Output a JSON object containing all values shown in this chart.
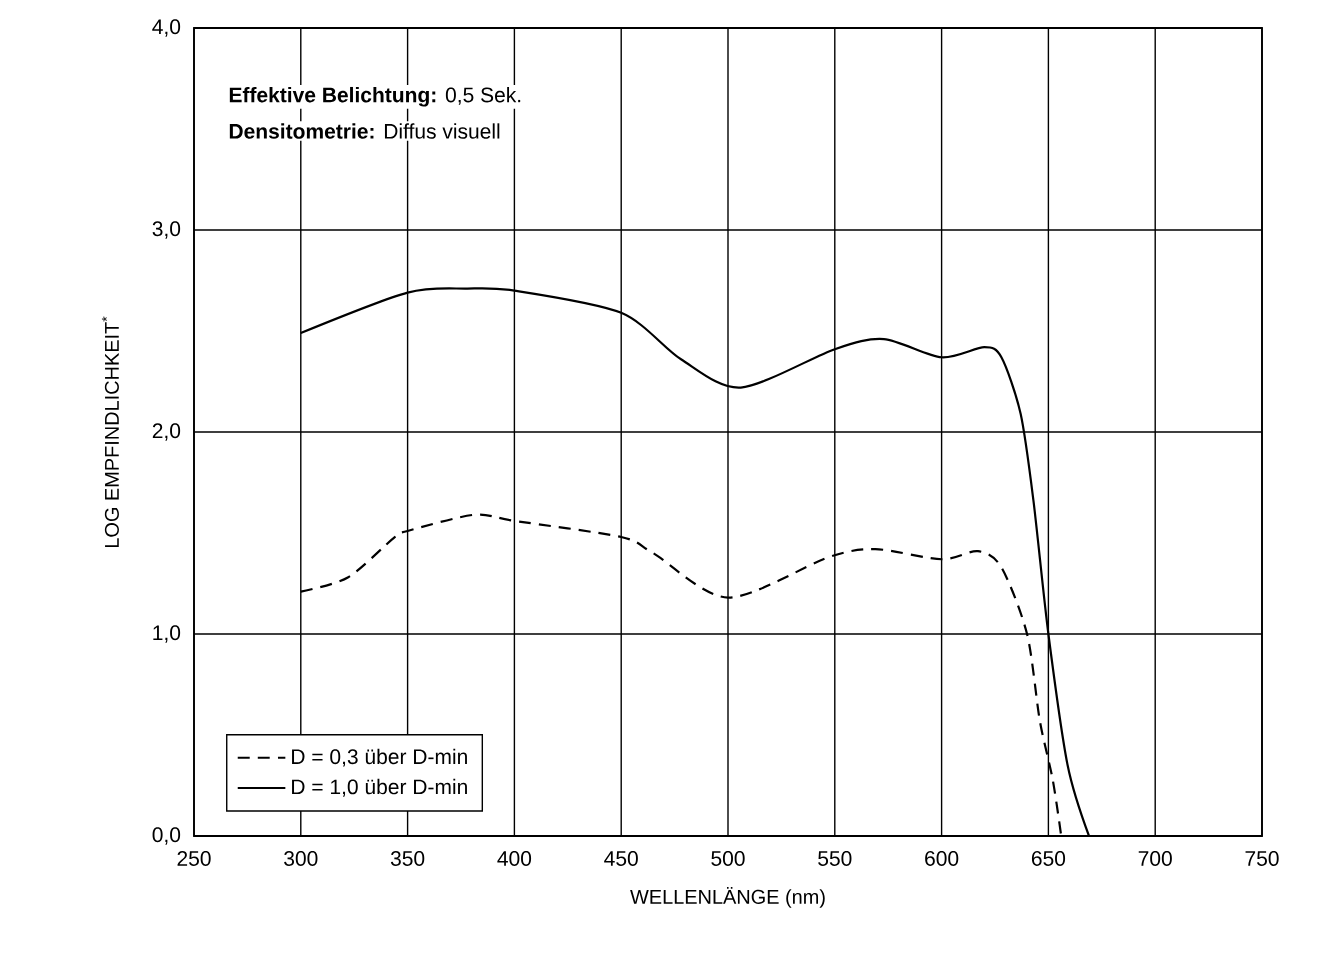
{
  "chart_data": {
    "type": "line",
    "xlabel": "WELLENLÄNGE (nm)",
    "ylabel": "LOG EMPFINDLICHKEIT$^{*}$",
    "annotations": [
      "**Effektive Belichtung:** 0,5 Sek.",
      "**Densitometrie:** Diffus visuell"
    ],
    "xlim": [
      250,
      750
    ],
    "xticks": [
      250,
      300,
      350,
      400,
      450,
      500,
      550,
      600,
      650,
      700,
      750
    ],
    "ylim": [
      0,
      4
    ],
    "yticks": [
      {
        "value": 0,
        "label": "0,0"
      },
      {
        "value": 1,
        "label": "1,0"
      },
      {
        "value": 2,
        "label": "2,0"
      },
      {
        "value": 3,
        "label": "3,0"
      },
      {
        "value": 4,
        "label": "4,0"
      }
    ],
    "grid": true,
    "legend": "bottom left",
    "series": [
      {
        "name": "D = 0,3 über D-min",
        "color": "#000000",
        "line_style": "dashed",
        "x": [
          300,
          322,
          344,
          350,
          381,
          400,
          450,
          465,
          500,
          547,
          569,
          600,
          617,
          628,
          640,
          646,
          652,
          656
        ],
        "values": [
          1.21,
          1.28,
          1.48,
          1.51,
          1.59,
          1.56,
          1.48,
          1.4,
          1.18,
          1.38,
          1.42,
          1.37,
          1.41,
          1.33,
          1.0,
          0.57,
          0.28,
          0
        ]
      },
      {
        "name": "D = 1,0 über D-min",
        "color": "#000000",
        "line_style": "solid",
        "x": [
          300,
          350,
          378,
          400,
          450,
          478,
          506,
          550,
          573,
          600,
          620,
          628,
          637,
          643,
          650,
          659,
          669
        ],
        "values": [
          2.49,
          2.69,
          2.71,
          2.7,
          2.59,
          2.36,
          2.22,
          2.41,
          2.46,
          2.37,
          2.42,
          2.37,
          2.09,
          1.66,
          1.0,
          0.35,
          0
        ]
      }
    ]
  }
}
